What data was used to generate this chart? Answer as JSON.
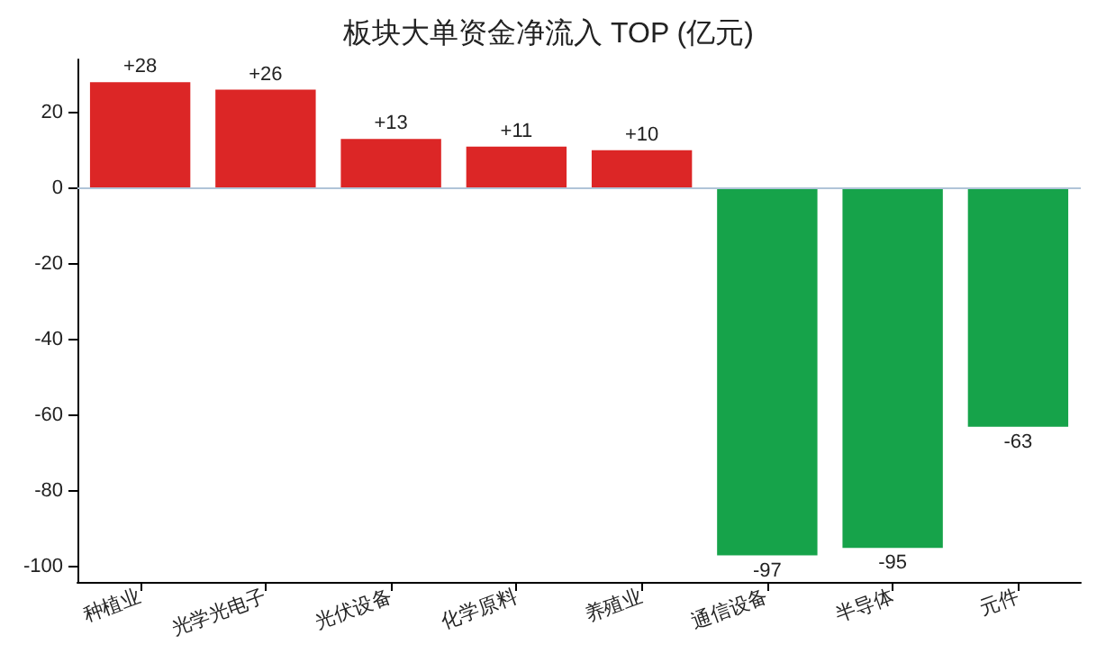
{
  "chart_data": {
    "type": "bar",
    "title": "板块大单资金净流入 TOP (亿元)",
    "categories": [
      "种植业",
      "光学光电子",
      "光伏设备",
      "化学原料",
      "养殖业",
      "通信设备",
      "半导体",
      "元件"
    ],
    "values": [
      28,
      26,
      13,
      11,
      10,
      -97,
      -95,
      -63
    ],
    "colors": [
      "#dc2626",
      "#dc2626",
      "#dc2626",
      "#dc2626",
      "#dc2626",
      "#16a34a",
      "#16a34a",
      "#16a34a"
    ],
    "value_labels": [
      "+28",
      "+26",
      "+13",
      "+11",
      "+10",
      "-97",
      "-95",
      "-63"
    ],
    "ylim": [
      -104,
      34
    ],
    "yticks": [
      -100,
      -80,
      -60,
      -40,
      -20,
      0,
      20
    ],
    "ref_lines": [
      {
        "axis": "y",
        "value": 0,
        "color": "#b0c4d8"
      }
    ],
    "grid": false
  }
}
